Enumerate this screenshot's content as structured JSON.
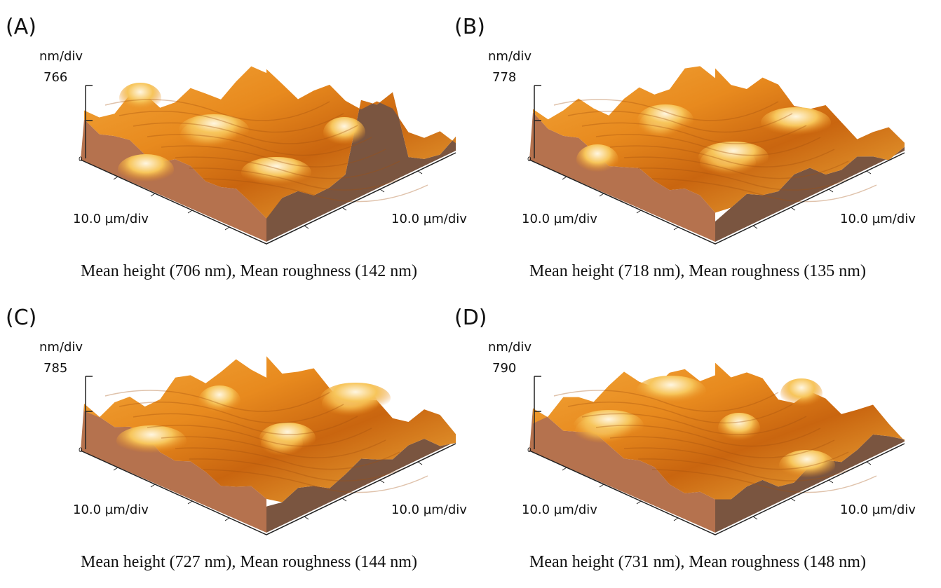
{
  "panels": [
    {
      "label": "(A)",
      "z_unit": "nm/div",
      "z_max": "766",
      "z_zero": "0",
      "x_label": "10.0 µm/div",
      "y_label": "10.0 µm/div",
      "caption": "Mean height (706 nm), Mean roughness (142 nm)"
    },
    {
      "label": "(B)",
      "z_unit": "nm/div",
      "z_max": "778",
      "z_zero": "0",
      "x_label": "10.0 µm/div",
      "y_label": "10.0 µm/div",
      "caption": "Mean height (718 nm), Mean roughness (135 nm)"
    },
    {
      "label": "(C)",
      "z_unit": "nm/div",
      "z_max": "785",
      "z_zero": "0",
      "x_label": "10.0 µm/div",
      "y_label": "10.0 µm/div",
      "caption": "Mean height (727 nm), Mean roughness (144 nm)"
    },
    {
      "label": "(D)",
      "z_unit": "nm/div",
      "z_max": "790",
      "z_zero": "0",
      "x_label": "10.0 µm/div",
      "y_label": "10.0 µm/div",
      "caption": "Mean height (731 nm), Mean roughness (148 nm)"
    }
  ]
}
